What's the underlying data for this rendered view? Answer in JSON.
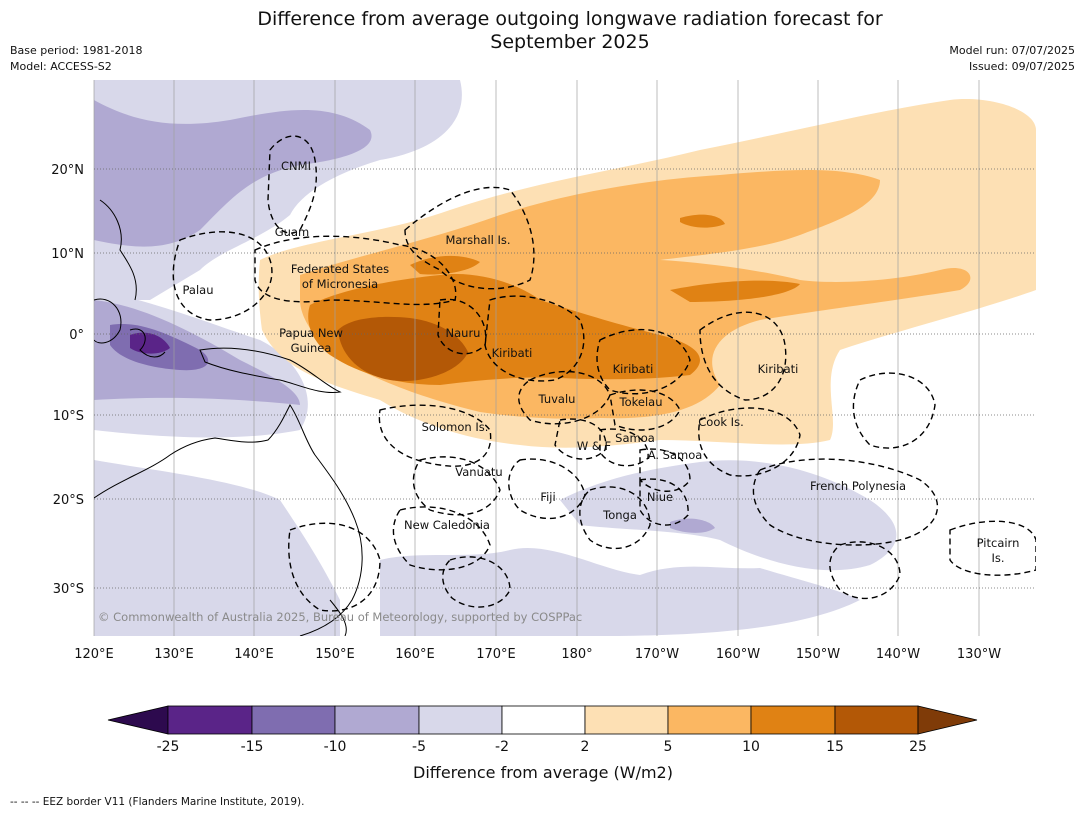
{
  "header": {
    "title_line1": "Difference from average outgoing longwave radiation forecast for",
    "title_line2": "September 2025",
    "base_period": "Base period: 1981-2018",
    "model": "Model: ACCESS-S2",
    "model_run": "Model run: 07/07/2025",
    "issued": "Issued: 09/07/2025"
  },
  "map": {
    "lon_labels": [
      "120°E",
      "130°E",
      "140°E",
      "150°E",
      "160°E",
      "170°E",
      "180°",
      "170°W",
      "160°W",
      "150°W",
      "140°W",
      "130°W"
    ],
    "lat_labels": [
      "20°N",
      "10°N",
      "0°",
      "10°S",
      "20°S",
      "30°S"
    ],
    "places": {
      "cnmi": "CNMI",
      "guam": "Guam",
      "marshall": "Marshall Is.",
      "fsm1": "Federated States",
      "fsm2": "of Micronesia",
      "palau": "Palau",
      "png1": "Papua New",
      "png2": "Guinea",
      "nauru": "Nauru",
      "kiribati_w": "Kiribati",
      "kiribati_c": "Kiribati",
      "kiribati_e": "Kiribati",
      "tuvalu": "Tuvalu",
      "tokelau": "Tokelau",
      "cook": "Cook Is.",
      "solomon": "Solomon Is.",
      "wf": "W & F",
      "samoa": "Samoa",
      "asamoa": "A. Samoa",
      "vanuatu": "Vanuatu",
      "fiji": "Fiji",
      "niue": "Niue",
      "tonga": "Tonga",
      "french_polynesia": "French Polynesia",
      "newcal": "New Caledonia",
      "pitcairn1": "Pitcairn",
      "pitcairn2": "Is."
    },
    "copyright": "© Commonwealth of Australia 2025, Bureau of Meteorology, supported by COSPPac",
    "colors": {
      "n25": "#2d0a4e",
      "n15": "#5a2488",
      "n10": "#7f6db0",
      "n5": "#b0a9d2",
      "n2": "#d8d8ea",
      "zero": "#ffffff",
      "p2": "#fde0b4",
      "p5": "#fbb762",
      "p10": "#e08214",
      "p15": "#b35806",
      "p25": "#7f3b08"
    }
  },
  "colorbar": {
    "ticks": [
      "-25",
      "-15",
      "-10",
      "-5",
      "-2",
      "2",
      "5",
      "10",
      "15",
      "25"
    ],
    "title": "Difference from average (W/m2)"
  },
  "footnote": "--  --  -- EEZ border V11 (Flanders Marine Institute, 2019)."
}
